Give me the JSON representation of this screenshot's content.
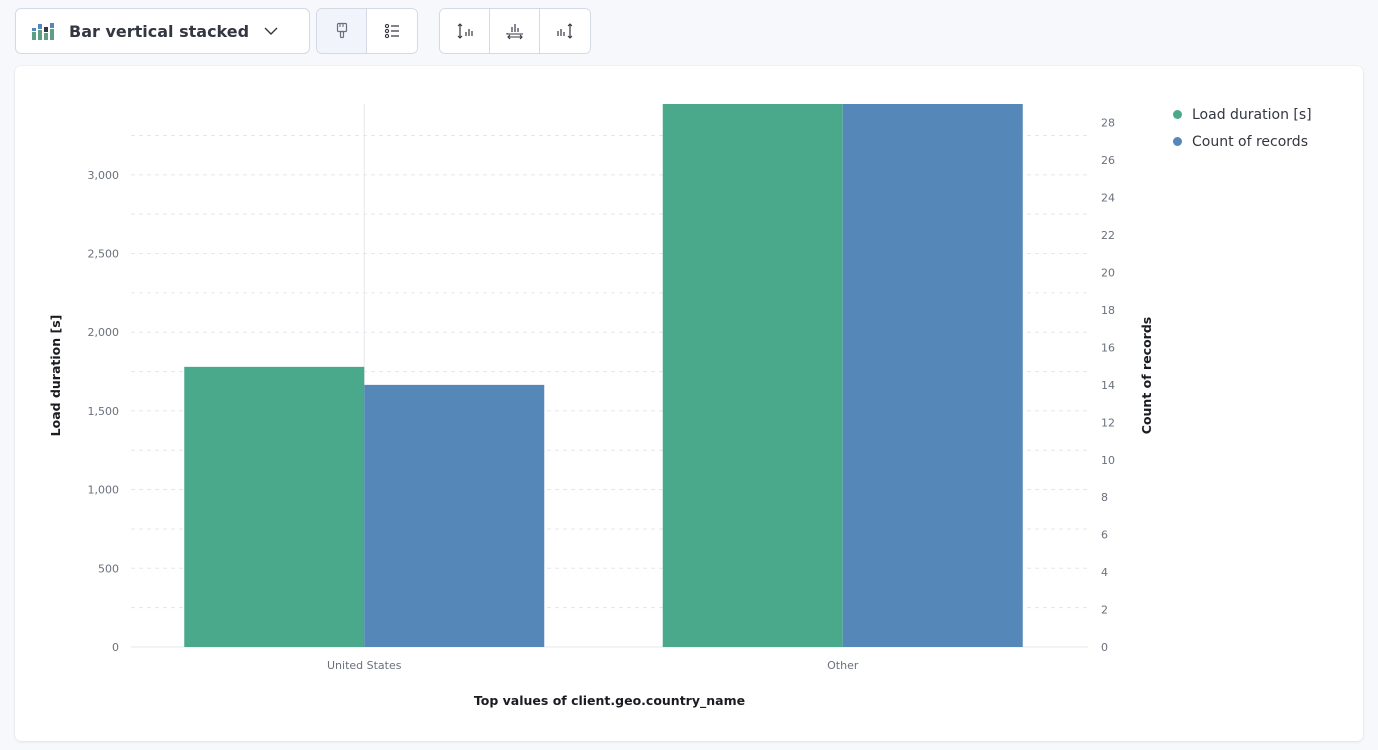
{
  "toolbar": {
    "chart_type_label": "Bar vertical stacked",
    "chart_type_icon": "bar-vertical-stacked-icon",
    "group1": [
      {
        "name": "visual-options-button",
        "icon": "paintbrush-icon",
        "active": true
      },
      {
        "name": "legend-button",
        "icon": "legend-list-icon",
        "active": false
      }
    ],
    "group2": [
      {
        "name": "left-axis-button",
        "icon": "left-axis-icon"
      },
      {
        "name": "bottom-axis-button",
        "icon": "bottom-axis-icon"
      },
      {
        "name": "right-axis-button",
        "icon": "right-axis-icon"
      }
    ]
  },
  "colors": {
    "series1": "#4aa98b",
    "series2": "#5587b8",
    "grid": "#e3e7ee",
    "axis_text": "#6a717d"
  },
  "legend": {
    "items": [
      {
        "label": "Load duration [s]",
        "color": "#4aa98b"
      },
      {
        "label": "Count of records",
        "color": "#5587b8"
      }
    ]
  },
  "chart_data": {
    "type": "bar",
    "title": "",
    "xlabel": "Top values of client.geo.country_name",
    "ylabel": "Load duration [s]",
    "y2label": "Count of records",
    "categories": [
      "United States",
      "Other"
    ],
    "series": [
      {
        "name": "Load duration [s]",
        "axis": "left",
        "values": [
          1780,
          3460
        ]
      },
      {
        "name": "Count of records",
        "axis": "right",
        "values": [
          14,
          30
        ]
      }
    ],
    "ylim": [
      0,
      3450
    ],
    "y2lim": [
      0,
      29
    ],
    "y_ticks": [
      0,
      500,
      1000,
      1500,
      2000,
      2500,
      3000
    ],
    "y_tick_labels": [
      "0",
      "500",
      "1,000",
      "1,500",
      "2,000",
      "2,500",
      "3,000"
    ],
    "y2_ticks": [
      0,
      2,
      4,
      6,
      8,
      10,
      12,
      14,
      16,
      18,
      20,
      22,
      24,
      26,
      28
    ],
    "y2_tick_labels": [
      "0",
      "2",
      "4",
      "6",
      "8",
      "10",
      "12",
      "14",
      "16",
      "18",
      "20",
      "22",
      "24",
      "26",
      "28"
    ],
    "grid": true,
    "legend_position": "top-right"
  }
}
